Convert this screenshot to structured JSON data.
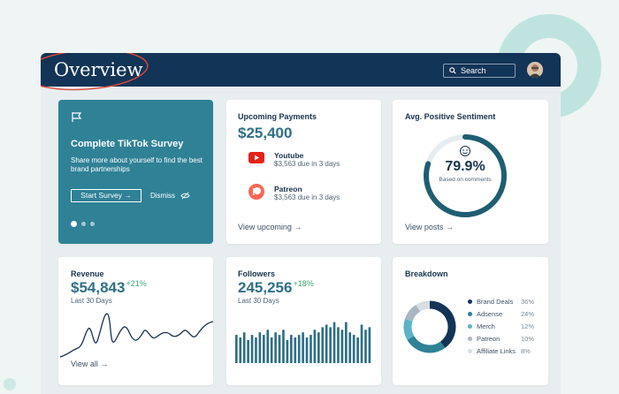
{
  "header": {
    "title": "Overview",
    "search_label": "Search"
  },
  "survey": {
    "title": "Complete TikTok Survey",
    "body": "Share more about yourself to find the best brand partnerships",
    "start_label": "Start Survey →",
    "dismiss_label": "Dismiss"
  },
  "payments": {
    "title": "Upcoming Payments",
    "amount": "$25,400",
    "items": [
      {
        "name": "Youtube",
        "due": "$3,563 due in 3 days"
      },
      {
        "name": "Patreon",
        "due": "$3,563 due in 3 days"
      }
    ],
    "link": "View upcoming →"
  },
  "sentiment": {
    "title": "Avg. Positive Sentiment",
    "value": "79.9%",
    "sub": "Based on comments",
    "ratio": 0.799,
    "link": "View posts →"
  },
  "revenue": {
    "title": "Revenue",
    "value": "$54,843",
    "change": "+21%",
    "period": "Last 30 Days",
    "link": "View all →"
  },
  "followers": {
    "title": "Followers",
    "value": "245,256",
    "change": "+18%",
    "period": "Last 30 Days",
    "bars": [
      0.55,
      0.5,
      0.6,
      0.45,
      0.55,
      0.5,
      0.6,
      0.55,
      0.65,
      0.5,
      0.6,
      0.55,
      0.65,
      0.45,
      0.55,
      0.5,
      0.55,
      0.6,
      0.5,
      0.55,
      0.65,
      0.6,
      0.7,
      0.75,
      0.7,
      0.8,
      0.7,
      0.65,
      0.8,
      0.6,
      0.55,
      0.5,
      0.75,
      0.65,
      0.7
    ]
  },
  "breakdown": {
    "title": "Breakdown",
    "items": [
      {
        "label": "Brand Deals",
        "pct": "36%",
        "value": 36,
        "color": "#123457"
      },
      {
        "label": "Adsense",
        "pct": "24%",
        "value": 24,
        "color": "#2f8196"
      },
      {
        "label": "Merch",
        "pct": "12%",
        "value": 12,
        "color": "#5cb3c8"
      },
      {
        "label": "Patreon",
        "pct": "10%",
        "value": 10,
        "color": "#a7b6c2"
      },
      {
        "label": "Affiliate Links",
        "pct": "8%",
        "value": 8,
        "color": "#d6dde3"
      }
    ]
  },
  "colors": {
    "navy": "#123457",
    "teal": "#2f8196",
    "accent_green": "#3aa974",
    "annotation_red": "#d94a3a"
  }
}
